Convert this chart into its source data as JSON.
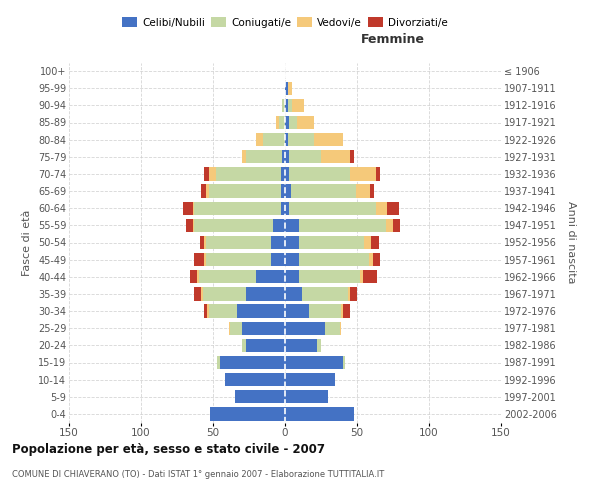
{
  "age_groups": [
    "0-4",
    "5-9",
    "10-14",
    "15-19",
    "20-24",
    "25-29",
    "30-34",
    "35-39",
    "40-44",
    "45-49",
    "50-54",
    "55-59",
    "60-64",
    "65-69",
    "70-74",
    "75-79",
    "80-84",
    "85-89",
    "90-94",
    "95-99",
    "100+"
  ],
  "birth_years": [
    "2002-2006",
    "1997-2001",
    "1992-1996",
    "1987-1991",
    "1982-1986",
    "1977-1981",
    "1972-1976",
    "1967-1971",
    "1962-1966",
    "1957-1961",
    "1952-1956",
    "1947-1951",
    "1942-1946",
    "1937-1941",
    "1932-1936",
    "1927-1931",
    "1922-1926",
    "1917-1921",
    "1912-1916",
    "1907-1911",
    "≤ 1906"
  ],
  "colors": {
    "celibi": "#4472c4",
    "coniugati": "#c5d8a4",
    "vedovi": "#f5c97a",
    "divorziati": "#c0392b"
  },
  "males": {
    "celibi": [
      52,
      35,
      42,
      45,
      27,
      30,
      33,
      27,
      20,
      10,
      10,
      8,
      3,
      3,
      3,
      2,
      0,
      0,
      0,
      0,
      0
    ],
    "coniugati": [
      0,
      0,
      0,
      2,
      3,
      8,
      20,
      30,
      40,
      45,
      45,
      55,
      60,
      50,
      45,
      25,
      15,
      4,
      2,
      0,
      0
    ],
    "vedovi": [
      0,
      0,
      0,
      0,
      0,
      1,
      1,
      1,
      1,
      1,
      1,
      1,
      1,
      2,
      5,
      3,
      5,
      2,
      0,
      0,
      0
    ],
    "divorziati": [
      0,
      0,
      0,
      0,
      0,
      0,
      2,
      5,
      5,
      7,
      3,
      5,
      7,
      3,
      3,
      0,
      0,
      0,
      0,
      0,
      0
    ]
  },
  "females": {
    "celibi": [
      48,
      30,
      35,
      40,
      22,
      28,
      17,
      12,
      10,
      10,
      10,
      10,
      3,
      4,
      3,
      3,
      2,
      3,
      2,
      2,
      0
    ],
    "coniugati": [
      0,
      0,
      0,
      2,
      3,
      10,
      22,
      32,
      42,
      48,
      45,
      60,
      60,
      45,
      42,
      22,
      18,
      5,
      3,
      0,
      0
    ],
    "vedovi": [
      0,
      0,
      0,
      0,
      0,
      1,
      1,
      1,
      2,
      3,
      5,
      5,
      8,
      10,
      18,
      20,
      20,
      12,
      8,
      3,
      0
    ],
    "divorziati": [
      0,
      0,
      0,
      0,
      0,
      0,
      5,
      5,
      10,
      5,
      5,
      5,
      8,
      3,
      3,
      3,
      0,
      0,
      0,
      0,
      0
    ]
  },
  "title": "Popolazione per età, sesso e stato civile - 2007",
  "subtitle": "COMUNE DI CHIAVERANO (TO) - Dati ISTAT 1° gennaio 2007 - Elaborazione TUTTITALIA.IT",
  "xlabel_right": "Femmine",
  "ylabel_left": "Fasce di età",
  "ylabel_right": "Anni di nascita",
  "xlim": 150,
  "legend_labels": [
    "Celibi/Nubili",
    "Coniugati/e",
    "Vedovi/e",
    "Divorziati/e"
  ],
  "bg_color": "#ffffff",
  "grid_color": "#cccccc"
}
